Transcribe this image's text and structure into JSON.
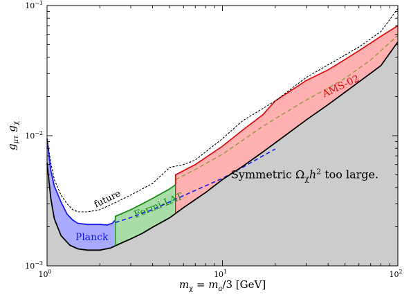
{
  "chart_data": {
    "type": "area",
    "xscale": "log",
    "yscale": "log",
    "xlim": [
      1,
      100
    ],
    "ylim": [
      0.001,
      0.1
    ],
    "x_ticks": [
      {
        "base": "10",
        "exp": "0",
        "value": 1
      },
      {
        "base": "10",
        "exp": "1",
        "value": 10
      },
      {
        "base": "10",
        "exp": "2",
        "value": 100
      }
    ],
    "y_ticks": [
      {
        "base": "10",
        "exp": "−3",
        "value": 0.001
      },
      {
        "base": "10",
        "exp": "−2",
        "value": 0.01
      },
      {
        "base": "10",
        "exp": "−1",
        "value": 0.1
      }
    ],
    "xlabel": "m_χ = m_a/3 [GeV]",
    "ylabel": "g_μτ g_χ",
    "colors": {
      "excluded_fill": "#cccccc",
      "planck_fill": "#aaaaff",
      "planck_line": "#1a1aee",
      "fermi_fill": "#a8dda8",
      "fermi_line": "#1a8a1a",
      "ams_fill": "#ffb0b0",
      "ams_line": "#e01010",
      "future_line": "#000000"
    },
    "series": [
      {
        "name": "Symmetric Ω_χh² too large.",
        "points": [
          [
            1.0,
            0.0062
          ],
          [
            1.05,
            0.0033
          ],
          [
            1.1,
            0.0023
          ],
          [
            1.2,
            0.00171
          ],
          [
            1.35,
            0.00144
          ],
          [
            1.5,
            0.00135
          ],
          [
            1.7,
            0.00132
          ],
          [
            2.0,
            0.00132
          ],
          [
            2.3,
            0.00137
          ],
          [
            2.6,
            0.00148
          ],
          [
            3.0,
            0.00161
          ],
          [
            3.5,
            0.00178
          ],
          [
            4.0,
            0.00198
          ],
          [
            5.0,
            0.00234
          ],
          [
            6.0,
            0.0028
          ],
          [
            8.0,
            0.00365
          ],
          [
            10.0,
            0.0046
          ],
          [
            13.0,
            0.0058
          ],
          [
            17.0,
            0.0075
          ],
          [
            20.0,
            0.0088
          ],
          [
            30.0,
            0.0132
          ],
          [
            40.0,
            0.0173
          ],
          [
            50.0,
            0.0216
          ],
          [
            70.0,
            0.0302
          ],
          [
            80.0,
            0.0345
          ],
          [
            100.0,
            0.0526
          ]
        ]
      },
      {
        "name": "Planck",
        "points": [
          [
            1.0,
            0.0095
          ],
          [
            1.05,
            0.0054
          ],
          [
            1.1,
            0.0041
          ],
          [
            1.2,
            0.0031
          ],
          [
            1.3,
            0.0025
          ],
          [
            1.4,
            0.00225
          ],
          [
            1.5,
            0.00212
          ],
          [
            1.7,
            0.00208
          ],
          [
            2.0,
            0.00208
          ],
          [
            2.2,
            0.00206
          ],
          [
            2.35,
            0.00212
          ],
          [
            2.45,
            0.00225
          ]
        ]
      },
      {
        "name": "Fermi-LAT",
        "points": [
          [
            2.45,
            0.00225
          ],
          [
            2.45,
            0.0024
          ],
          [
            3.0,
            0.0027
          ],
          [
            3.5,
            0.003
          ],
          [
            4.0,
            0.0033
          ],
          [
            5.0,
            0.0039
          ],
          [
            5.4,
            0.0042
          ]
        ]
      },
      {
        "name": "AMS-02",
        "points": [
          [
            5.4,
            0.0042
          ],
          [
            5.4,
            0.005
          ],
          [
            7.0,
            0.006
          ],
          [
            10.0,
            0.0083
          ],
          [
            13.0,
            0.011
          ],
          [
            17.0,
            0.0145
          ],
          [
            20.0,
            0.0185
          ],
          [
            30.0,
            0.0265
          ],
          [
            40.0,
            0.032
          ],
          [
            50.0,
            0.0385
          ],
          [
            60.0,
            0.045
          ],
          [
            80.0,
            0.058
          ],
          [
            100.0,
            0.07
          ]
        ]
      },
      {
        "name": "future",
        "points": [
          [
            1.0,
            0.0095
          ],
          [
            1.05,
            0.0062
          ],
          [
            1.1,
            0.0046
          ],
          [
            1.2,
            0.0035
          ],
          [
            1.3,
            0.003
          ],
          [
            1.4,
            0.0027
          ],
          [
            1.5,
            0.0026
          ],
          [
            1.7,
            0.0026
          ],
          [
            2.0,
            0.0027
          ],
          [
            2.5,
            0.0031
          ],
          [
            3.0,
            0.0035
          ],
          [
            4.0,
            0.0043
          ],
          [
            5.0,
            0.0057
          ],
          [
            6.0,
            0.006
          ],
          [
            7.0,
            0.0065
          ],
          [
            9.0,
            0.0085
          ],
          [
            10.0,
            0.0095
          ],
          [
            13.0,
            0.013
          ],
          [
            20.0,
            0.0185
          ],
          [
            30.0,
            0.028
          ],
          [
            40.0,
            0.035
          ],
          [
            60.0,
            0.048
          ],
          [
            80.0,
            0.063
          ],
          [
            100.0,
            0.095
          ]
        ]
      },
      {
        "name": "projection",
        "points": [
          [
            2.45,
            0.00215
          ],
          [
            3.0,
            0.00235
          ],
          [
            4.0,
            0.0027
          ],
          [
            5.0,
            0.0031
          ],
          [
            7.0,
            0.0038
          ],
          [
            10.0,
            0.0047
          ],
          [
            13.0,
            0.0057
          ],
          [
            17.0,
            0.007
          ],
          [
            20.0,
            0.0079
          ],
          [
            30.0,
            0.0125
          ],
          [
            40.0,
            0.0165
          ],
          [
            50.0,
            0.021
          ],
          [
            70.0,
            0.0295
          ],
          [
            100.0,
            0.045
          ]
        ]
      }
    ],
    "annotations": [
      {
        "text": "Planck",
        "x": 1.45,
        "y": 0.00157,
        "rotate": 0,
        "color": "#1a1aee",
        "size": 14
      },
      {
        "text": "Fermi-LAT",
        "x": 3.2,
        "y": 0.00233,
        "rotate": -22,
        "color": "#1a8a1a",
        "size": 14
      },
      {
        "text": "AMS-02",
        "x": 38,
        "y": 0.0197,
        "rotate": -25,
        "color": "#e01010",
        "size": 14
      },
      {
        "text": "future",
        "x": 1.9,
        "y": 0.0028,
        "rotate": -26,
        "color": "#000000",
        "size": 13
      },
      {
        "text": "Symmetric Ω",
        "sub": "χ",
        "tail": "h",
        "sup": "2",
        "end": " too large.",
        "x": 11.2,
        "y": 0.0047,
        "rotate": 0,
        "color": "#000000",
        "size": 16
      }
    ]
  }
}
